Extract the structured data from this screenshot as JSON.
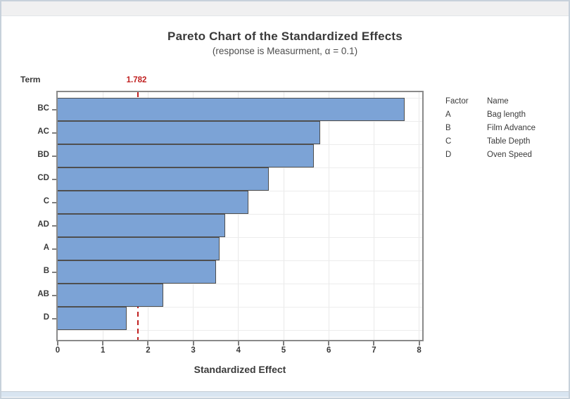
{
  "window": {
    "titlebar_label": ""
  },
  "chart": {
    "title": "Pareto Chart of the Standardized Effects",
    "subtitle": "(response is Measurment, α = 0.1)",
    "y_axis_title": "Term",
    "x_axis_title": "Standardized Effect",
    "reference_line_label": "1.782"
  },
  "legend": {
    "header": {
      "factor": "Factor",
      "name": "Name"
    },
    "rows": [
      {
        "factor": "A",
        "name": "Bag length"
      },
      {
        "factor": "B",
        "name": "Film Advance"
      },
      {
        "factor": "C",
        "name": "Table Depth"
      },
      {
        "factor": "D",
        "name": "Oven Speed"
      }
    ]
  },
  "chart_data": {
    "type": "bar",
    "orientation": "horizontal",
    "title": "Pareto Chart of the Standardized Effects",
    "subtitle": "(response is Measurment, α = 0.1)",
    "xlabel": "Standardized Effect",
    "ylabel": "Term",
    "categories": [
      "BC",
      "AC",
      "BD",
      "CD",
      "C",
      "AD",
      "A",
      "B",
      "AB",
      "D"
    ],
    "values": [
      7.68,
      5.81,
      5.67,
      4.68,
      4.22,
      3.7,
      3.58,
      3.5,
      2.33,
      1.52
    ],
    "reference_line": 1.782,
    "xlim": [
      0,
      8.07
    ],
    "x_ticks": [
      0,
      1,
      2,
      3,
      4,
      5,
      6,
      7,
      8
    ],
    "grid": true,
    "legend_position": "right",
    "colors": {
      "bar_fill": "#7ca3d6",
      "bar_border": "#4f4f4f",
      "reference_line": "#c02020",
      "gridline": "#e9e9e9",
      "plot_border": "#8a8a8a",
      "text": "#3a3a3a"
    }
  }
}
